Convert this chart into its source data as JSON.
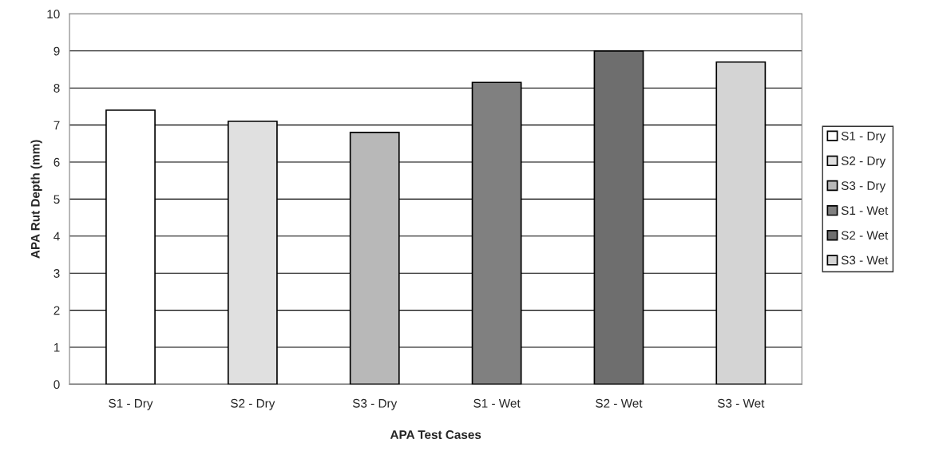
{
  "chart_data": {
    "type": "bar",
    "xlabel": "APA Test Cases",
    "ylabel": "APA Rut Depth (mm)",
    "categories": [
      "S1 - Dry",
      "S2 - Dry",
      "S3 - Dry",
      "S1 - Wet",
      "S2 - Wet",
      "S3 - Wet"
    ],
    "series": [
      {
        "name": "S1 - Dry",
        "color": "#ffffff",
        "values": [
          7.4,
          null,
          null,
          null,
          null,
          null
        ]
      },
      {
        "name": "S2 - Dry",
        "color": "#e0e0e0",
        "values": [
          null,
          7.1,
          null,
          null,
          null,
          null
        ]
      },
      {
        "name": "S3 - Dry",
        "color": "#b8b8b8",
        "values": [
          null,
          null,
          6.8,
          null,
          null,
          null
        ]
      },
      {
        "name": "S1 - Wet",
        "color": "#808080",
        "values": [
          null,
          null,
          null,
          8.15,
          null,
          null
        ]
      },
      {
        "name": "S2 - Wet",
        "color": "#6e6e6e",
        "values": [
          null,
          null,
          null,
          null,
          9.0,
          null
        ]
      },
      {
        "name": "S3 - Wet",
        "color": "#d4d4d4",
        "values": [
          null,
          null,
          null,
          null,
          null,
          8.7
        ]
      }
    ],
    "ylim": [
      0,
      10
    ],
    "yticks": [
      0,
      1,
      2,
      3,
      4,
      5,
      6,
      7,
      8,
      9,
      10
    ],
    "grid": "y",
    "legend": "right"
  }
}
